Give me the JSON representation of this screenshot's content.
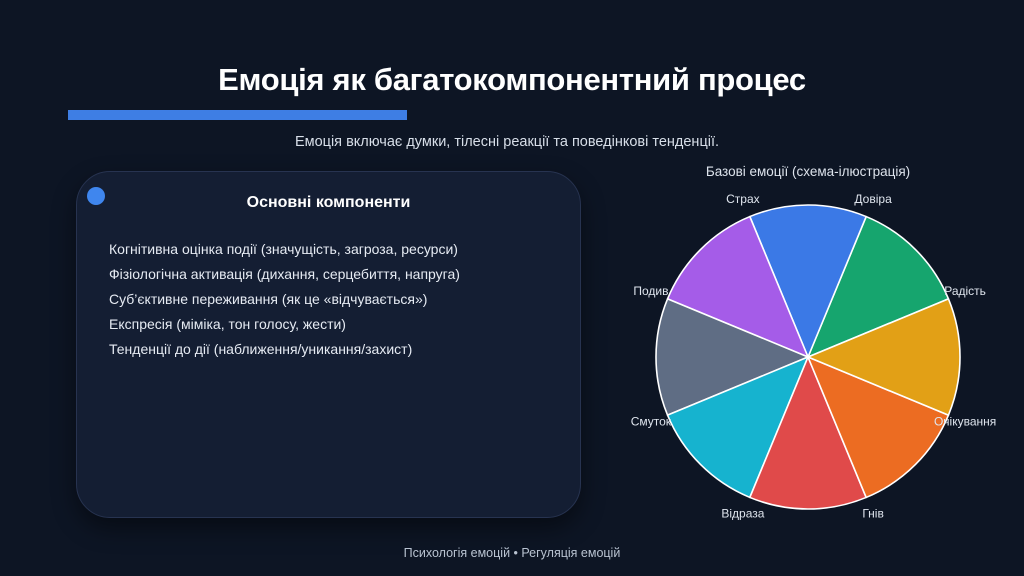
{
  "slide": {
    "title": "Емоція як багатокомпонентний процес",
    "subtitle": "Емоція включає думки, тілесні реакції та поведінкові тенденції.",
    "footer": "Психологія емоцій • Регуляція емоцій",
    "accent_color": "#3e7ee4"
  },
  "card": {
    "title": "Основні компоненти",
    "items": [
      "Когнітивна оцінка події (значущість, загроза, ресурси)",
      "Фізіологічна активація (дихання, серцебиття, напруга)",
      "Суб’єктивне переживання (як це «відчувається»)",
      "Експресія (міміка, тон голосу, жести)",
      "Тенденції до дії (наближення/уникання/захист)"
    ]
  },
  "chart_data": {
    "type": "pie",
    "title": "Базові емоції (схема-ілюстрація)",
    "labels": [
      "Радість",
      "Довіра",
      "Страх",
      "Подив",
      "Смуток",
      "Відраза",
      "Гнів",
      "Очікування"
    ],
    "values": [
      12.5,
      12.5,
      12.5,
      12.5,
      12.5,
      12.5,
      12.5,
      12.5
    ],
    "colors": [
      "#16a56e",
      "#3b79e6",
      "#a55ce8",
      "#5f6d84",
      "#16b3cf",
      "#e04a4a",
      "#ec6c22",
      "#e2a016"
    ],
    "slice_angle_deg": 45,
    "start_angles_deg": [
      22.5,
      67.5,
      112.5,
      157.5,
      202.5,
      247.5,
      292.5,
      337.5
    ],
    "label_at": "slice start angle, radius 1.12",
    "slice_border_color": "#ffffff",
    "label_color": "#dfe5ee",
    "legend_position": "none"
  }
}
